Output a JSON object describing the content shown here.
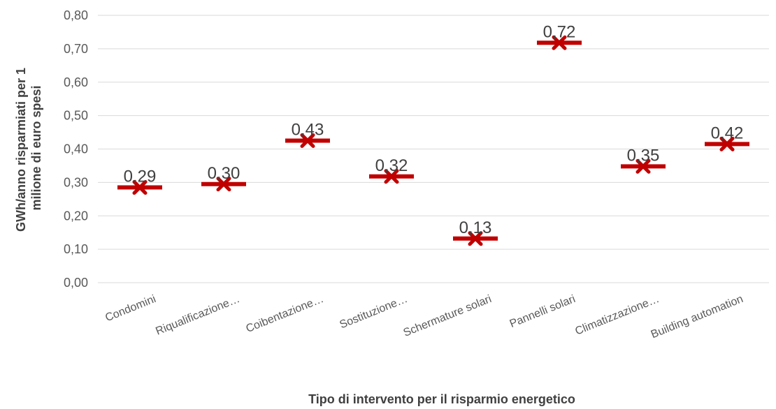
{
  "chart_data": {
    "type": "scatter",
    "categories": [
      "Condomini",
      "Riqualificazione…",
      "Coibentazione…",
      "Sostituzione…",
      "Schermature solari",
      "Pannelli solari",
      "Climatizzazione…",
      "Building automation"
    ],
    "values": [
      0.285,
      0.295,
      0.425,
      0.318,
      0.132,
      0.718,
      0.348,
      0.415
    ],
    "data_labels": [
      "0,29",
      "0,30",
      "0,43",
      "0,32",
      "0,13",
      "0,72",
      "0,35",
      "0,42"
    ],
    "ylabel_lines": [
      "GWh/anno risparmiati per 1",
      "milione di euro spesi"
    ],
    "xlabel": "Tipo di intervento per il risparmio energetico",
    "ylim": [
      0,
      0.8
    ],
    "y_ticks": [
      "0,00",
      "0,10",
      "0,20",
      "0,30",
      "0,40",
      "0,50",
      "0,60",
      "0,70",
      "0,80"
    ],
    "grid": true,
    "marker_color": "#C00000",
    "grid_color": "#D9D9D9"
  }
}
